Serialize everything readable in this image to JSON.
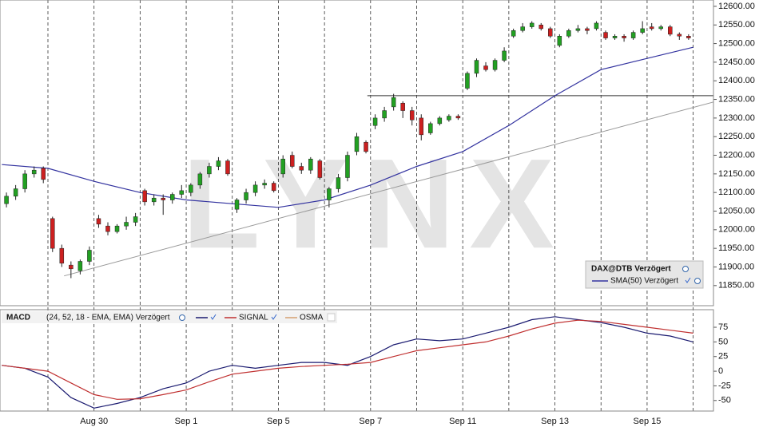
{
  "chart_data": [
    {
      "type": "candlestick",
      "watermark": "LYNX",
      "name": "DAX@DTB Verzögert",
      "up_color": "#22a022",
      "down_color": "#cc2020",
      "xlim": [
        -0.04,
        15.44
      ],
      "xticks": [
        {
          "value": 1,
          "label": null
        },
        {
          "value": 2,
          "label": "Aug 30"
        },
        {
          "value": 3,
          "label": null
        },
        {
          "value": 4,
          "label": "Sep 1"
        },
        {
          "value": 5,
          "label": null
        },
        {
          "value": 6,
          "label": "Sep 5"
        },
        {
          "value": 7,
          "label": null
        },
        {
          "value": 8,
          "label": "Sep 7"
        },
        {
          "value": 9,
          "label": null
        },
        {
          "value": 10,
          "label": "Sep 11"
        },
        {
          "value": 11,
          "label": null
        },
        {
          "value": 12,
          "label": "Sep 13"
        },
        {
          "value": 13,
          "label": null
        },
        {
          "value": 14,
          "label": "Sep 15"
        },
        {
          "value": 15,
          "label": null
        }
      ],
      "ylim": [
        11796,
        12617
      ],
      "yticks": [
        {
          "value": 11850,
          "label": "11850.00"
        },
        {
          "value": 11900,
          "label": "11900.00"
        },
        {
          "value": 11950,
          "label": "11950.00"
        },
        {
          "value": 12000,
          "label": "12000.00"
        },
        {
          "value": 12050,
          "label": "12050.00"
        },
        {
          "value": 12100,
          "label": "12100.00"
        },
        {
          "value": 12150,
          "label": "12150.00"
        },
        {
          "value": 12200,
          "label": "12200.00"
        },
        {
          "value": 12250,
          "label": "12250.00"
        },
        {
          "value": 12300,
          "label": "12300.00"
        },
        {
          "value": 12350,
          "label": "12350.00"
        },
        {
          "value": 12400,
          "label": "12400.00"
        },
        {
          "value": 12450,
          "label": "12450.00"
        },
        {
          "value": 12500,
          "label": "12500.00"
        },
        {
          "value": 12550,
          "label": "12550.00"
        },
        {
          "value": 12600,
          "label": "12600.00"
        }
      ],
      "x": [
        0.1,
        0.3,
        0.5,
        0.7,
        0.9,
        1.1,
        1.3,
        1.5,
        1.7,
        1.9,
        2.1,
        2.3,
        2.5,
        2.7,
        2.9,
        3.1,
        3.3,
        3.5,
        3.7,
        3.9,
        4.1,
        4.3,
        4.5,
        4.7,
        4.9,
        5.1,
        5.3,
        5.5,
        5.7,
        5.9,
        6.1,
        6.3,
        6.5,
        6.7,
        6.9,
        7.1,
        7.3,
        7.5,
        7.7,
        7.9,
        8.1,
        8.3,
        8.5,
        8.7,
        8.9,
        9.1,
        9.3,
        9.5,
        9.7,
        9.9,
        10.1,
        10.3,
        10.5,
        10.7,
        10.9,
        11.1,
        11.3,
        11.5,
        11.7,
        11.9,
        12.1,
        12.3,
        12.5,
        12.7,
        12.9,
        13.1,
        13.3,
        13.5,
        13.7,
        13.9,
        14.1,
        14.3,
        14.5,
        14.7,
        14.9
      ],
      "open": [
        12070,
        12090,
        12110,
        12150,
        12165,
        12030,
        11950,
        11905,
        11890,
        11915,
        12030,
        12010,
        11995,
        12010,
        12020,
        12105,
        12075,
        12085,
        12080,
        12095,
        12100,
        12120,
        12150,
        12170,
        12185,
        12055,
        12080,
        12100,
        12120,
        12125,
        12150,
        12200,
        12170,
        12160,
        12185,
        12080,
        12110,
        12140,
        12210,
        12235,
        12280,
        12300,
        12330,
        12340,
        12320,
        12300,
        12260,
        12285,
        12295,
        12305,
        12380,
        12420,
        12440,
        12430,
        12455,
        12520,
        12535,
        12545,
        12550,
        12540,
        12495,
        12520,
        12535,
        12540,
        12540,
        12530,
        12515,
        12520,
        12515,
        12530,
        12545,
        12540,
        12545,
        12525,
        12520
      ],
      "high": [
        12100,
        12120,
        12160,
        12170,
        12170,
        12035,
        11960,
        11915,
        11920,
        11955,
        12040,
        12020,
        12015,
        12035,
        12045,
        12110,
        12095,
        12095,
        12100,
        12120,
        12125,
        12155,
        12180,
        12195,
        12190,
        12085,
        12110,
        12130,
        12135,
        12130,
        12200,
        12210,
        12180,
        12195,
        12190,
        12115,
        12150,
        12210,
        12260,
        12240,
        12310,
        12330,
        12365,
        12345,
        12330,
        12310,
        12290,
        12305,
        12310,
        12310,
        12425,
        12460,
        12450,
        12460,
        12490,
        12540,
        12555,
        12560,
        12555,
        12545,
        12525,
        12540,
        12550,
        12545,
        12560,
        12535,
        12525,
        12525,
        12535,
        12560,
        12555,
        12550,
        12550,
        12530,
        12525
      ],
      "low": [
        12060,
        12080,
        12100,
        12140,
        12125,
        11940,
        11900,
        11870,
        11880,
        11905,
        12005,
        11985,
        11990,
        12000,
        12010,
        12065,
        12065,
        12040,
        12070,
        12085,
        12090,
        12110,
        12140,
        12160,
        12145,
        12045,
        12070,
        12090,
        12110,
        12100,
        12140,
        12165,
        12150,
        12150,
        12135,
        12060,
        12100,
        12130,
        12200,
        12205,
        12270,
        12290,
        12320,
        12300,
        12280,
        12240,
        12255,
        12280,
        12290,
        12295,
        12375,
        12410,
        12425,
        12425,
        12450,
        12515,
        12530,
        12540,
        12535,
        12515,
        12490,
        12515,
        12530,
        12525,
        12535,
        12510,
        12510,
        12505,
        12510,
        12525,
        12535,
        12535,
        12520,
        12510,
        12510
      ],
      "close": [
        12090,
        12110,
        12150,
        12160,
        12135,
        11950,
        11910,
        11895,
        11915,
        11945,
        12015,
        11995,
        12010,
        12020,
        12035,
        12075,
        12085,
        12080,
        12095,
        12105,
        12120,
        12150,
        12170,
        12185,
        12150,
        12080,
        12100,
        12120,
        12125,
        12105,
        12190,
        12170,
        12160,
        12190,
        12140,
        12110,
        12140,
        12200,
        12250,
        12210,
        12300,
        12320,
        12355,
        12320,
        12295,
        12255,
        12285,
        12300,
        12305,
        12300,
        12420,
        12455,
        12430,
        12455,
        12480,
        12535,
        12545,
        12555,
        12540,
        12520,
        12520,
        12535,
        12540,
        12535,
        12555,
        12515,
        12520,
        12515,
        12530,
        12540,
        12540,
        12545,
        12525,
        12520,
        12515
      ],
      "series": [
        {
          "name": "SMA(50) Verzögert",
          "color": "#3434a0",
          "x": [
            0,
            1,
            2,
            3,
            4,
            5,
            6,
            7,
            8,
            9,
            10,
            11,
            12,
            13,
            14,
            15
          ],
          "values": [
            12175,
            12165,
            12130,
            12100,
            12080,
            12070,
            12060,
            12080,
            12120,
            12170,
            12210,
            12280,
            12360,
            12430,
            12460,
            12490
          ]
        }
      ],
      "trendlines": [
        {
          "color": "#333333",
          "x": [
            7.93,
            15.44
          ],
          "values": [
            12360,
            12360
          ]
        },
        {
          "color": "#999999",
          "x": [
            1.35,
            15.44
          ],
          "values": [
            11876,
            12343
          ]
        }
      ]
    },
    {
      "type": "line",
      "title": "MACD",
      "subtitle": "(24, 52, 18 - EMA, EMA) Verzögert",
      "xlim": [
        -0.04,
        15.44
      ],
      "ylim": [
        -68,
        105
      ],
      "yticks": [
        -50,
        -25,
        0,
        25,
        50,
        75
      ],
      "x": [
        0,
        0.5,
        1,
        1.5,
        2,
        2.5,
        3,
        3.5,
        4,
        4.5,
        5,
        5.5,
        6,
        6.5,
        7,
        7.5,
        8,
        8.5,
        9,
        9.5,
        10,
        10.5,
        11,
        11.5,
        12,
        12.5,
        13,
        13.5,
        14,
        14.5,
        15
      ],
      "series": [
        {
          "name": "",
          "color": "#1a1a70",
          "values": [
            10,
            5,
            -10,
            -45,
            -63,
            -55,
            -45,
            -30,
            -20,
            0,
            10,
            5,
            10,
            15,
            15,
            10,
            25,
            45,
            55,
            52,
            55,
            65,
            75,
            88,
            93,
            88,
            83,
            75,
            65,
            60,
            50
          ]
        },
        {
          "name": "SIGNAL",
          "color": "#c03030",
          "values": [
            10,
            5,
            0,
            -20,
            -40,
            -48,
            -47,
            -40,
            -32,
            -18,
            -5,
            0,
            5,
            8,
            10,
            12,
            15,
            25,
            35,
            40,
            45,
            50,
            60,
            72,
            82,
            87,
            85,
            80,
            75,
            70,
            65
          ]
        },
        {
          "name": "OSMA",
          "color": "#d4a070"
        }
      ]
    }
  ]
}
